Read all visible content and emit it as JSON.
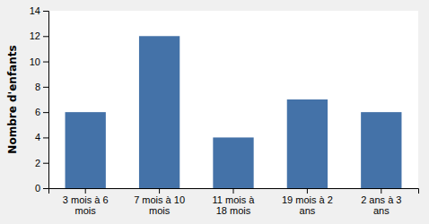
{
  "chart_data": {
    "type": "bar",
    "categories": [
      "3 mois à 6\nmois",
      "7 mois à 10\nmois",
      "11 mois à\n18 mois",
      "19 mois à 2\nans",
      "2 ans à 3\nans"
    ],
    "values": [
      6,
      12,
      4,
      7,
      6
    ],
    "color": "#4472a8",
    "ylabel": "Nombre d'enfants",
    "ylim": [
      0,
      14
    ],
    "yticks": [
      0,
      2,
      4,
      6,
      8,
      10,
      12,
      14
    ],
    "grid": false
  }
}
